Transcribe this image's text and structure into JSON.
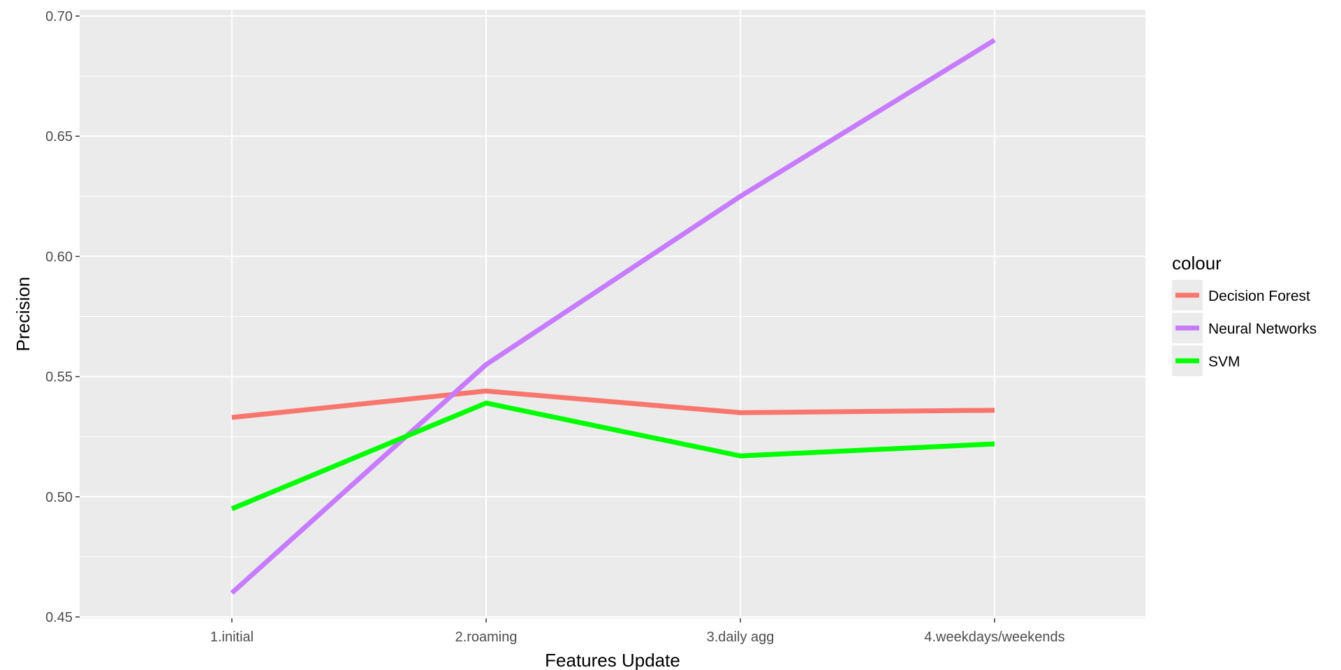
{
  "chart_data": {
    "type": "line",
    "xlabel": "Features Update",
    "ylabel": "Precision",
    "categories": [
      "1.initial",
      "2.roaming",
      "3.daily agg",
      "4.weekdays/weekends"
    ],
    "ylim": [
      0.45,
      0.7
    ],
    "yticks": [
      0.45,
      0.5,
      0.55,
      0.6,
      0.65,
      0.7
    ],
    "ytick_labels": [
      "0.45",
      "0.50",
      "0.55",
      "0.60",
      "0.65",
      "0.70"
    ],
    "grid": true,
    "legend": {
      "title": "colour",
      "position": "right"
    },
    "series": [
      {
        "name": "Decision Forest",
        "color": "#F8766D",
        "values": [
          0.533,
          0.544,
          0.535,
          0.536
        ]
      },
      {
        "name": "Neural Networks",
        "color": "#C77CFF",
        "values": [
          0.46,
          0.555,
          0.625,
          0.69
        ]
      },
      {
        "name": "SVM",
        "color": "#00FF00",
        "values": [
          0.495,
          0.539,
          0.517,
          0.522
        ]
      }
    ]
  }
}
